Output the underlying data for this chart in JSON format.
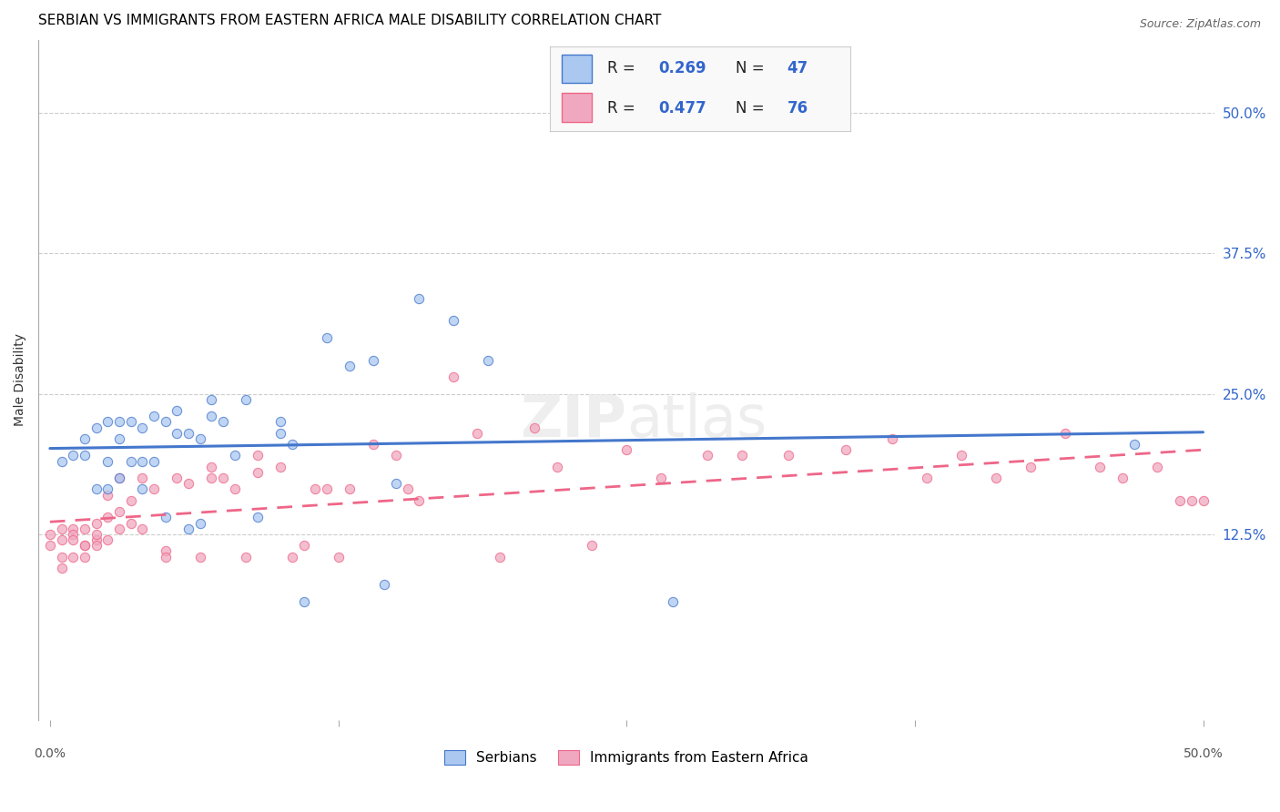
{
  "title": "SERBIAN VS IMMIGRANTS FROM EASTERN AFRICA MALE DISABILITY CORRELATION CHART",
  "source": "Source: ZipAtlas.com",
  "ylabel": "Male Disability",
  "ytick_labels": [
    "12.5%",
    "25.0%",
    "37.5%",
    "50.0%"
  ],
  "ytick_values": [
    0.125,
    0.25,
    0.375,
    0.5
  ],
  "xlim": [
    -0.005,
    0.505
  ],
  "ylim": [
    -0.04,
    0.565
  ],
  "color_serbian": "#aac8f0",
  "color_immigrant": "#f0a8c0",
  "color_serbian_line": "#4477cc",
  "color_immigrant_line": "#ee6688",
  "color_text_blue": "#3366cc",
  "scatter_alpha": 0.75,
  "scatter_size": 55,
  "serbian_x": [
    0.005,
    0.01,
    0.015,
    0.015,
    0.02,
    0.02,
    0.025,
    0.025,
    0.025,
    0.03,
    0.03,
    0.03,
    0.035,
    0.035,
    0.04,
    0.04,
    0.04,
    0.045,
    0.045,
    0.05,
    0.05,
    0.055,
    0.055,
    0.06,
    0.06,
    0.065,
    0.065,
    0.07,
    0.07,
    0.075,
    0.08,
    0.085,
    0.09,
    0.1,
    0.1,
    0.105,
    0.11,
    0.12,
    0.13,
    0.14,
    0.145,
    0.15,
    0.16,
    0.175,
    0.19,
    0.27,
    0.47
  ],
  "serbian_y": [
    0.19,
    0.195,
    0.195,
    0.21,
    0.165,
    0.22,
    0.165,
    0.19,
    0.225,
    0.175,
    0.21,
    0.225,
    0.19,
    0.225,
    0.165,
    0.19,
    0.22,
    0.19,
    0.23,
    0.14,
    0.225,
    0.215,
    0.235,
    0.215,
    0.13,
    0.21,
    0.135,
    0.23,
    0.245,
    0.225,
    0.195,
    0.245,
    0.14,
    0.225,
    0.215,
    0.205,
    0.065,
    0.3,
    0.275,
    0.28,
    0.08,
    0.17,
    0.335,
    0.315,
    0.28,
    0.065,
    0.205
  ],
  "immigrant_x": [
    0.0,
    0.0,
    0.005,
    0.005,
    0.005,
    0.005,
    0.01,
    0.01,
    0.01,
    0.01,
    0.015,
    0.015,
    0.015,
    0.015,
    0.02,
    0.02,
    0.02,
    0.02,
    0.025,
    0.025,
    0.025,
    0.03,
    0.03,
    0.03,
    0.035,
    0.035,
    0.04,
    0.04,
    0.045,
    0.05,
    0.05,
    0.055,
    0.06,
    0.065,
    0.07,
    0.07,
    0.075,
    0.08,
    0.085,
    0.09,
    0.09,
    0.1,
    0.105,
    0.11,
    0.115,
    0.12,
    0.125,
    0.13,
    0.14,
    0.15,
    0.155,
    0.16,
    0.175,
    0.185,
    0.195,
    0.21,
    0.22,
    0.235,
    0.25,
    0.265,
    0.285,
    0.3,
    0.32,
    0.345,
    0.365,
    0.38,
    0.395,
    0.41,
    0.425,
    0.44,
    0.455,
    0.465,
    0.48,
    0.49,
    0.495,
    0.5
  ],
  "immigrant_y": [
    0.125,
    0.115,
    0.12,
    0.13,
    0.105,
    0.095,
    0.13,
    0.125,
    0.12,
    0.105,
    0.115,
    0.13,
    0.115,
    0.105,
    0.12,
    0.115,
    0.135,
    0.125,
    0.14,
    0.12,
    0.16,
    0.145,
    0.175,
    0.13,
    0.135,
    0.155,
    0.13,
    0.175,
    0.165,
    0.11,
    0.105,
    0.175,
    0.17,
    0.105,
    0.175,
    0.185,
    0.175,
    0.165,
    0.105,
    0.18,
    0.195,
    0.185,
    0.105,
    0.115,
    0.165,
    0.165,
    0.105,
    0.165,
    0.205,
    0.195,
    0.165,
    0.155,
    0.265,
    0.215,
    0.105,
    0.22,
    0.185,
    0.115,
    0.2,
    0.175,
    0.195,
    0.195,
    0.195,
    0.2,
    0.21,
    0.175,
    0.195,
    0.175,
    0.185,
    0.215,
    0.185,
    0.175,
    0.185,
    0.155,
    0.155,
    0.155
  ]
}
